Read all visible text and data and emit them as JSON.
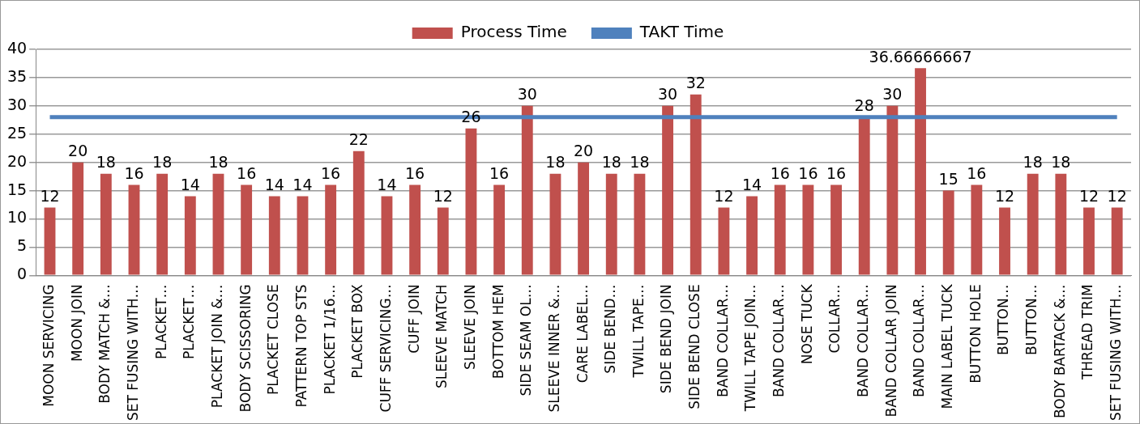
{
  "chart_data": {
    "type": "bar",
    "categories": [
      "MOON SERVICING",
      "MOON JOIN",
      "BODY MATCH &…",
      "SET FUSING WITH…",
      "PLACKET…",
      "PLACKET…",
      "PLACKET JOIN &…",
      "BODY SCISSORING",
      "PLACKET CLOSE",
      "PATTERN TOP STS",
      "PLACKET 1/16…",
      "PLACKET BOX",
      "CUFF SERVICING…",
      "CUFF JOIN",
      "SLEEVE MATCH",
      "SLEEVE JOIN",
      "BOTTOM HEM",
      "SIDE SEAM OL…",
      "SLEEVE INNER &…",
      "CARE LABEL…",
      "SIDE BEND…",
      "TWILL TAPE…",
      "SIDE BEND JOIN",
      "SIDE BEND CLOSE",
      "BAND COLLAR…",
      "TWILL TAPE JOIN…",
      "BAND COLLAR…",
      "NOSE TUCK",
      "COLLAR…",
      "BAND COLLAR…",
      "BAND COLLAR JOIN",
      "BAND COLLAR…",
      "MAIN LABEL TUCK",
      "BUTTON HOLE",
      "BUTTON…",
      "BUTTON…",
      "BODY BARTACK &…",
      "THREAD TRIM",
      "SET FUSING WITH…"
    ],
    "series": [
      {
        "name": "Process Time",
        "color": "#c0504d",
        "values": [
          12,
          20,
          18,
          16,
          18,
          14,
          18,
          16,
          14,
          14,
          16,
          22,
          14,
          16,
          12,
          26,
          16,
          30,
          18,
          20,
          18,
          18,
          30,
          32,
          12,
          14,
          16,
          16,
          16,
          28,
          30,
          36.66666667,
          15,
          16,
          12,
          18,
          18,
          12,
          12
        ],
        "value_labels": [
          "12",
          "20",
          "18",
          "16",
          "18",
          "14",
          "18",
          "16",
          "14",
          "14",
          "16",
          "22",
          "14",
          "16",
          "12",
          "26",
          "16",
          "30",
          "18",
          "20",
          "18",
          "18",
          "30",
          "32",
          "12",
          "14",
          "16",
          "16",
          "16",
          "28",
          "30",
          "36.66666667",
          "15",
          "16",
          "12",
          "18",
          "18",
          "12",
          "12"
        ]
      },
      {
        "name": "TAKT Time",
        "type": "line",
        "color": "#4f81bd",
        "marker": "none",
        "values": [
          28,
          28,
          28,
          28,
          28,
          28,
          28,
          28,
          28,
          28,
          28,
          28,
          28,
          28,
          28,
          28,
          28,
          28,
          28,
          28,
          28,
          28,
          28,
          28,
          28,
          28,
          28,
          28,
          28,
          28,
          28,
          28,
          28,
          28,
          28,
          28,
          28,
          28,
          28
        ]
      }
    ],
    "ylim": [
      0,
      40
    ],
    "yticks": [
      0,
      5,
      10,
      15,
      20,
      25,
      30,
      35,
      40
    ],
    "grid": "y",
    "legend": "top"
  }
}
